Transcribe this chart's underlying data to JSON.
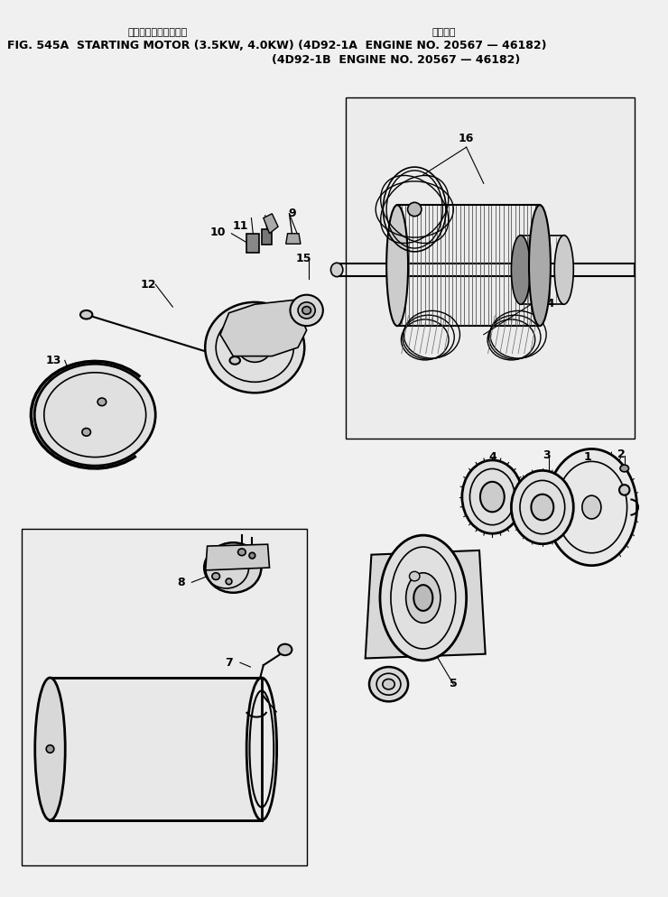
{
  "title_jp_left": "スターティングモータ",
  "title_jp_right": "適用号機",
  "title2": "FIG. 545A  STARTING MOTOR (3.5KW, 4.0KW) (4D92-1A  ENGINE NO. 20567 — 46182)",
  "title3": "(4D92-1B  ENGINE NO. 20567 — 46182)",
  "bg": "#f0f0f0",
  "lc": "#000000",
  "fig_w": 7.4,
  "fig_h": 9.94,
  "dpi": 100
}
